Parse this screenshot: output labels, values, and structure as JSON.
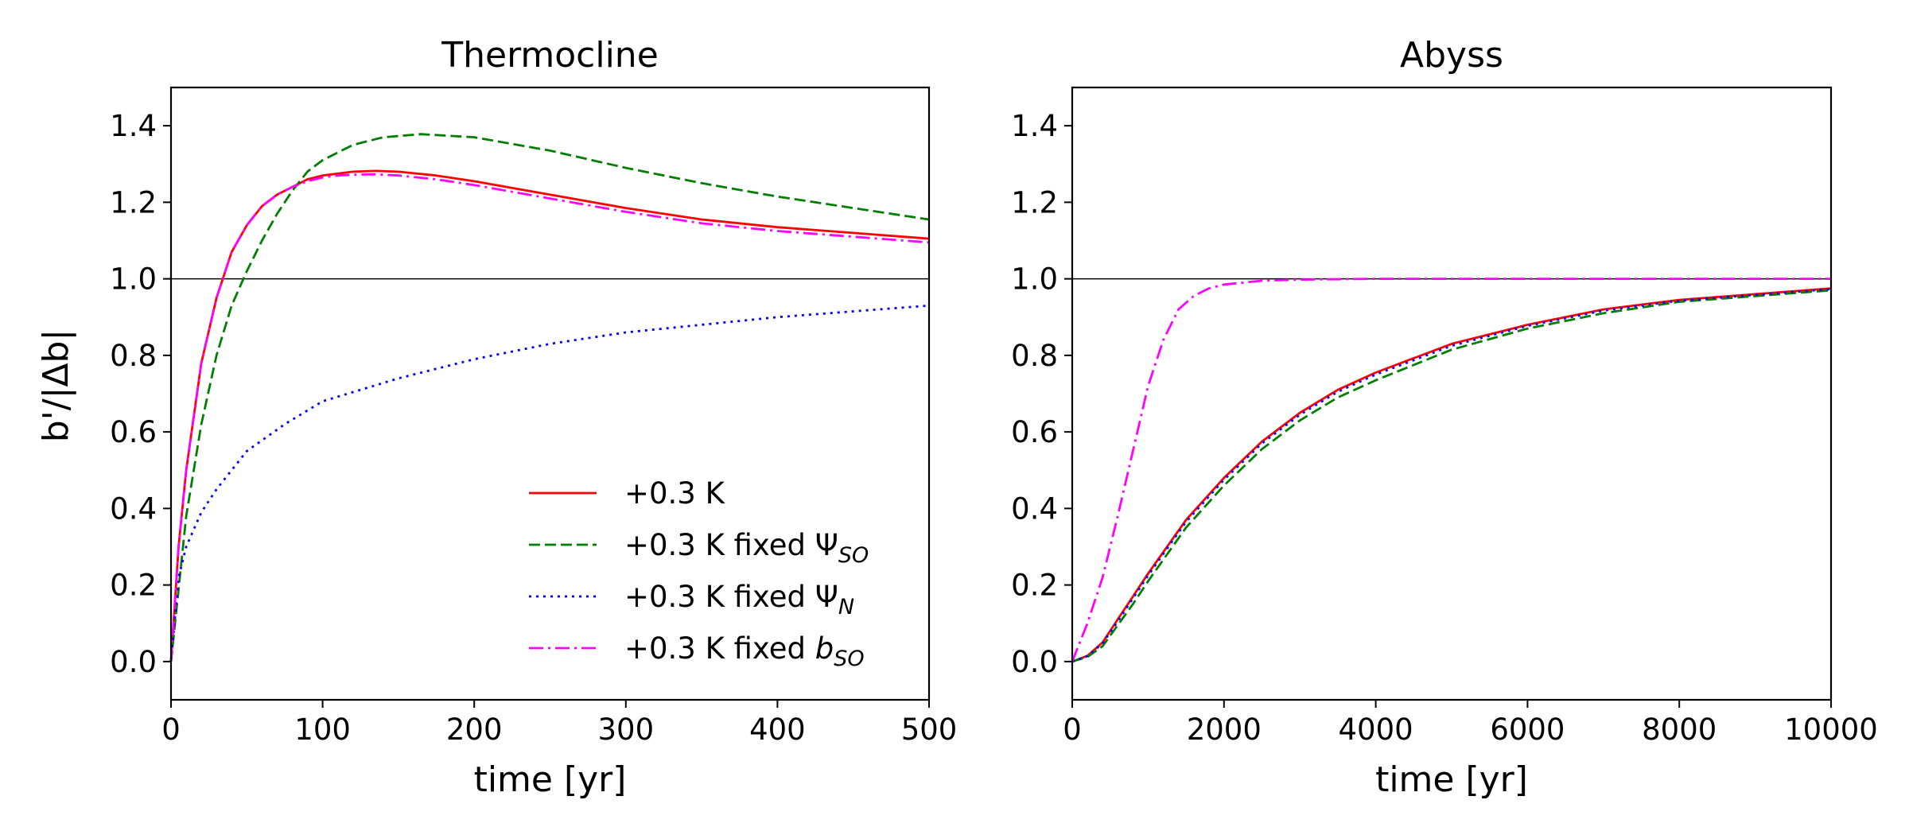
{
  "ylabel": "b'/|Δb|",
  "legend": {
    "placement": "lower-right",
    "entries": [
      {
        "series": 0,
        "prefix": "+0.3 K",
        "symbol": "",
        "sub": ""
      },
      {
        "series": 1,
        "prefix": "+0.3 K fixed ",
        "symbol": "Ψ",
        "sub": "SO"
      },
      {
        "series": 2,
        "prefix": "+0.3 K fixed ",
        "symbol": "Ψ",
        "sub": "N"
      },
      {
        "series": 3,
        "prefix": "+0.3 K fixed ",
        "symbol": "b",
        "sub": "SO"
      }
    ]
  },
  "colors": {
    "red": "#ff0000",
    "green": "#007f00",
    "blue": "#0000ff",
    "magenta": "#ff00ff",
    "reference": "#000000"
  },
  "chart_data": [
    {
      "type": "line",
      "title": "Thermocline",
      "xlabel": "time [yr]",
      "ylabel": "b'/|Δb|",
      "xlim": [
        0,
        500
      ],
      "ylim": [
        -0.1,
        1.5
      ],
      "xticks": [
        "0",
        "100",
        "200",
        "300",
        "400",
        "500"
      ],
      "yticks": [
        "0.0",
        "0.2",
        "0.4",
        "0.6",
        "0.8",
        "1.0",
        "1.2",
        "1.4"
      ],
      "grid": false,
      "reference_line": 1.0,
      "series": [
        {
          "name": "+0.3 K",
          "color": "#ff0000",
          "dash": "solid",
          "x": [
            0,
            5,
            10,
            20,
            30,
            40,
            50,
            60,
            70,
            80,
            90,
            100,
            110,
            120,
            135,
            150,
            175,
            200,
            250,
            300,
            350,
            400,
            450,
            500
          ],
          "y": [
            0,
            0.3,
            0.5,
            0.78,
            0.95,
            1.07,
            1.14,
            1.19,
            1.22,
            1.24,
            1.26,
            1.27,
            1.275,
            1.28,
            1.282,
            1.28,
            1.27,
            1.255,
            1.22,
            1.185,
            1.155,
            1.135,
            1.12,
            1.105
          ]
        },
        {
          "name": "+0.3 K fixed Ψ_SO",
          "color": "#007f00",
          "dash": "dashed",
          "x": [
            0,
            10,
            20,
            30,
            40,
            50,
            60,
            70,
            80,
            90,
            100,
            120,
            140,
            165,
            200,
            250,
            300,
            350,
            400,
            450,
            500
          ],
          "y": [
            0,
            0.38,
            0.62,
            0.8,
            0.93,
            1.02,
            1.1,
            1.17,
            1.23,
            1.28,
            1.31,
            1.35,
            1.37,
            1.378,
            1.37,
            1.335,
            1.29,
            1.25,
            1.215,
            1.185,
            1.155
          ]
        },
        {
          "name": "+0.3 K fixed Ψ_N",
          "color": "#0000ff",
          "dash": "dotted",
          "x": [
            0,
            5,
            10,
            20,
            30,
            40,
            50,
            75,
            100,
            150,
            200,
            250,
            300,
            350,
            400,
            450,
            500
          ],
          "y": [
            0,
            0.22,
            0.3,
            0.39,
            0.45,
            0.5,
            0.55,
            0.62,
            0.68,
            0.74,
            0.79,
            0.83,
            0.86,
            0.88,
            0.9,
            0.915,
            0.93
          ]
        },
        {
          "name": "+0.3 K fixed b_SO",
          "color": "#ff00ff",
          "dash": "dashdot",
          "x": [
            0,
            5,
            10,
            20,
            30,
            40,
            50,
            60,
            70,
            80,
            90,
            100,
            110,
            120,
            135,
            150,
            175,
            200,
            250,
            300,
            350,
            400,
            450,
            500
          ],
          "y": [
            0,
            0.3,
            0.5,
            0.78,
            0.95,
            1.07,
            1.14,
            1.19,
            1.22,
            1.24,
            1.255,
            1.265,
            1.27,
            1.272,
            1.273,
            1.27,
            1.26,
            1.245,
            1.21,
            1.175,
            1.145,
            1.125,
            1.11,
            1.095
          ]
        }
      ]
    },
    {
      "type": "line",
      "title": "Abyss",
      "xlabel": "time [yr]",
      "xlim": [
        0,
        10000
      ],
      "ylim": [
        -0.1,
        1.5
      ],
      "xticks": [
        "0",
        "2000",
        "4000",
        "6000",
        "8000",
        "10000"
      ],
      "yticks": [
        "0.0",
        "0.2",
        "0.4",
        "0.6",
        "0.8",
        "1.0",
        "1.2",
        "1.4"
      ],
      "grid": false,
      "reference_line": 1.0,
      "series": [
        {
          "name": "+0.3 K",
          "color": "#ff0000",
          "dash": "solid",
          "x": [
            0,
            200,
            400,
            600,
            800,
            1000,
            1500,
            2000,
            2500,
            3000,
            3500,
            4000,
            5000,
            6000,
            7000,
            8000,
            9000,
            10000
          ],
          "y": [
            0,
            0.015,
            0.05,
            0.11,
            0.17,
            0.23,
            0.37,
            0.48,
            0.575,
            0.65,
            0.71,
            0.755,
            0.83,
            0.88,
            0.92,
            0.945,
            0.96,
            0.975
          ]
        },
        {
          "name": "+0.3 K fixed Ψ_SO",
          "color": "#007f00",
          "dash": "dashed",
          "x": [
            0,
            200,
            400,
            600,
            800,
            1000,
            1500,
            2000,
            2500,
            3000,
            3500,
            4000,
            5000,
            6000,
            7000,
            8000,
            9000,
            10000
          ],
          "y": [
            0,
            0.012,
            0.04,
            0.095,
            0.15,
            0.21,
            0.35,
            0.46,
            0.555,
            0.63,
            0.69,
            0.735,
            0.815,
            0.87,
            0.91,
            0.94,
            0.955,
            0.97
          ]
        },
        {
          "name": "+0.3 K fixed Ψ_N",
          "color": "#0000ff",
          "dash": "dotted",
          "x": [
            0,
            200,
            400,
            600,
            800,
            1000,
            1500,
            2000,
            2500,
            3000,
            3500,
            4000,
            5000,
            6000,
            7000,
            8000,
            9000,
            10000
          ],
          "y": [
            0,
            0.014,
            0.048,
            0.105,
            0.165,
            0.225,
            0.365,
            0.475,
            0.57,
            0.645,
            0.705,
            0.75,
            0.825,
            0.877,
            0.917,
            0.943,
            0.958,
            0.973
          ]
        },
        {
          "name": "+0.3 K fixed b_SO",
          "color": "#ff00ff",
          "dash": "dashdot",
          "x": [
            0,
            200,
            400,
            600,
            800,
            1000,
            1200,
            1400,
            1600,
            1800,
            2000,
            2500,
            3000,
            4000,
            6000,
            8000,
            10000
          ],
          "y": [
            0,
            0.1,
            0.22,
            0.38,
            0.55,
            0.72,
            0.84,
            0.92,
            0.955,
            0.975,
            0.985,
            0.995,
            0.998,
            1.0,
            1.0,
            1.0,
            1.0
          ]
        }
      ]
    }
  ]
}
